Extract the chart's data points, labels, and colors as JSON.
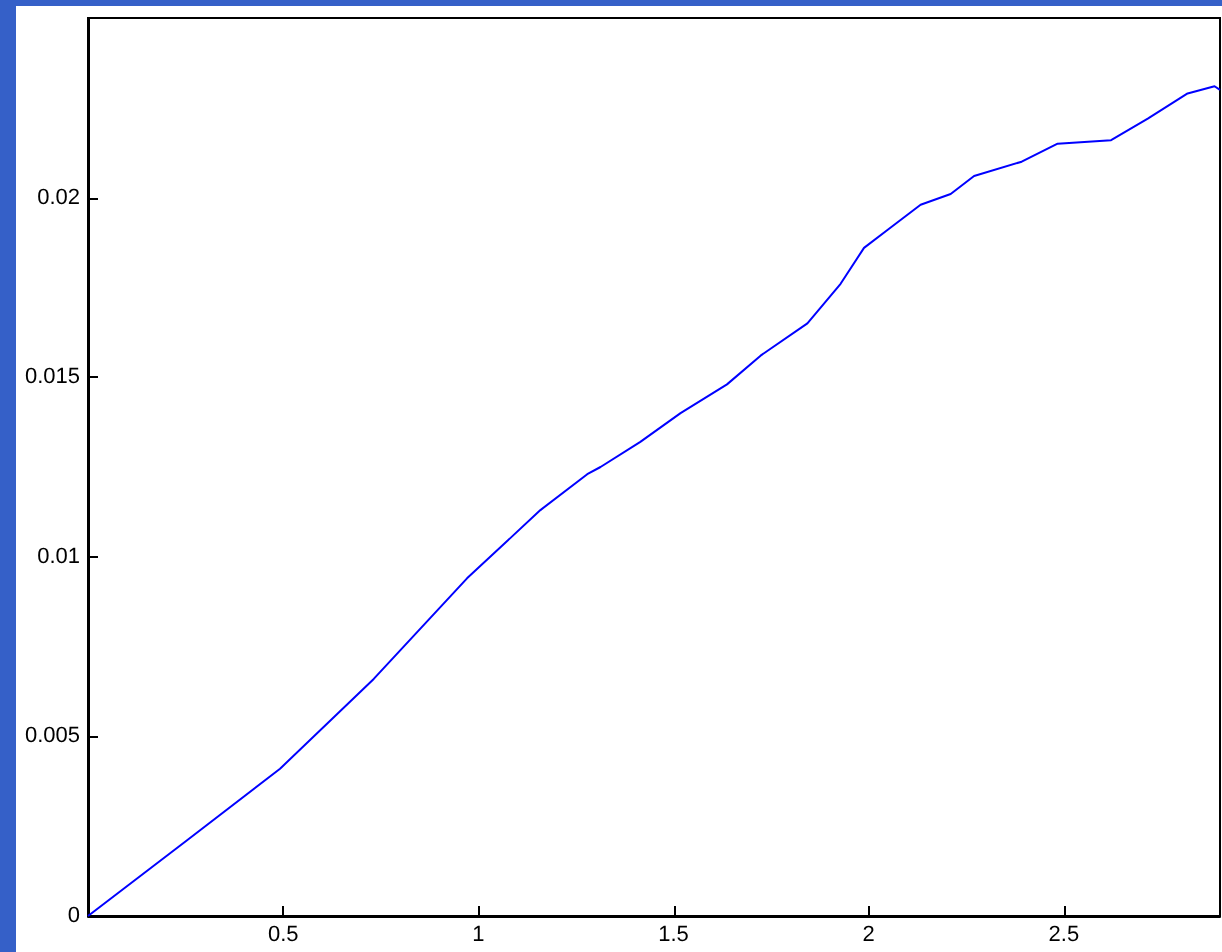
{
  "chart_data": {
    "type": "line",
    "x": [
      0,
      0.253,
      0.492,
      0.732,
      0.971,
      1.159,
      1.279,
      1.313,
      1.415,
      1.518,
      1.637,
      1.723,
      1.843,
      1.928,
      1.988,
      2.048,
      2.133,
      2.21,
      2.27,
      2.392,
      2.484,
      2.621,
      2.715,
      2.817,
      2.886,
      2.9
    ],
    "series": [
      {
        "color": "#0000ff",
        "values": [
          0,
          0.0021,
          0.0041,
          0.0066,
          0.0094,
          0.0113,
          0.0123,
          0.0125,
          0.0132,
          0.014,
          0.0148,
          0.0156,
          0.0165,
          0.0176,
          0.0186,
          0.0191,
          0.0198,
          0.0201,
          0.0206,
          0.021,
          0.0215,
          0.0216,
          0.0222,
          0.0229,
          0.0231,
          0.023
        ]
      }
    ],
    "xlim": [
      0,
      2.9
    ],
    "xticks": [
      0.5,
      1,
      1.5,
      2,
      2.5
    ],
    "ylim": [
      0,
      0.025
    ],
    "yticks": [
      0,
      0.005,
      0.01,
      0.015,
      0.02
    ],
    "grid": false,
    "marker": "none",
    "line_style": "solid"
  }
}
